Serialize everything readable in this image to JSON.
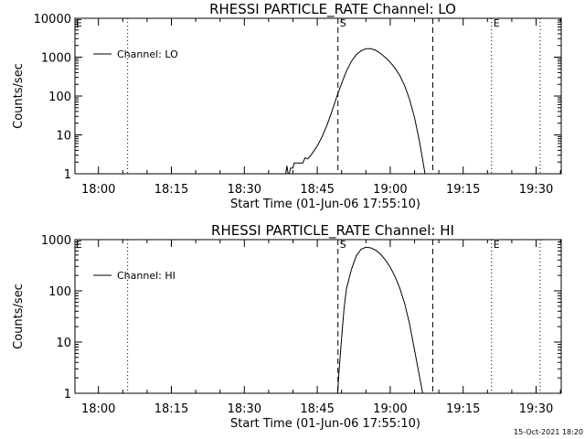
{
  "footer": {
    "timestamp": "15-Oct-2021 18:20"
  },
  "chart_data": [
    {
      "type": "line",
      "title": "RHESSI PARTICLE_RATE Channel: LO",
      "xlabel": "Start Time (01-Jun-06 17:55:10)",
      "ylabel": "Counts/sec",
      "yscale": "log",
      "ylim": [
        1,
        10000
      ],
      "xlim": [
        "17:55:10",
        "19:35:10"
      ],
      "x_ticks": [
        "18:00",
        "18:15",
        "18:30",
        "18:45",
        "19:00",
        "19:15",
        "19:30"
      ],
      "y_ticks": [
        "1",
        "10",
        "100",
        "1000",
        "10000"
      ],
      "legend": {
        "position": "top-left",
        "entries": [
          "Channel: LO"
        ]
      },
      "series": [
        {
          "name": "Channel: LO",
          "x": [
            "18:38:30",
            "18:38:45",
            "18:39:00",
            "18:39:15",
            "18:39:30",
            "18:40:00",
            "18:40:15",
            "18:41:00",
            "18:42:00",
            "18:42:30",
            "18:43:00",
            "18:43:30",
            "18:44:00",
            "18:45:00",
            "18:46:00",
            "18:47:00",
            "18:48:00",
            "18:49:00",
            "18:50:00",
            "18:51:00",
            "18:52:00",
            "18:53:00",
            "18:54:00",
            "18:55:00",
            "18:56:00",
            "18:57:00",
            "18:58:00",
            "18:59:00",
            "19:00:00",
            "19:01:00",
            "19:02:00",
            "19:03:00",
            "19:04:00",
            "19:05:00",
            "19:06:00",
            "19:06:40",
            "19:07:10"
          ],
          "y": [
            1.0,
            1.6,
            1.0,
            1.0,
            1.4,
            1.4,
            1.9,
            1.9,
            1.9,
            2.6,
            2.4,
            2.8,
            3.4,
            5.2,
            9.0,
            18,
            40,
            95,
            210,
            440,
            780,
            1150,
            1450,
            1650,
            1650,
            1500,
            1250,
            980,
            740,
            520,
            330,
            180,
            80,
            28,
            7,
            2.3,
            1.0
          ]
        }
      ],
      "annotations": [
        {
          "label": "S",
          "time": "18:49:15",
          "style": "dashed"
        },
        {
          "label": "",
          "time": "19:08:45",
          "style": "dashed"
        },
        {
          "label": "E",
          "time": "19:20:50",
          "style": "dotted"
        },
        {
          "label": "",
          "time": "18:06:00",
          "style": "dotted"
        },
        {
          "label": "",
          "time": "19:30:50",
          "style": "dotted"
        },
        {
          "label": "E",
          "time": "17:55:20",
          "style": "none"
        }
      ]
    },
    {
      "type": "line",
      "title": "RHESSI PARTICLE_RATE Channel: HI",
      "xlabel": "Start Time (01-Jun-06 17:55:10)",
      "ylabel": "Counts/sec",
      "yscale": "log",
      "ylim": [
        1,
        1000
      ],
      "xlim": [
        "17:55:10",
        "19:35:10"
      ],
      "x_ticks": [
        "18:00",
        "18:15",
        "18:30",
        "18:45",
        "19:00",
        "19:15",
        "19:30"
      ],
      "y_ticks": [
        "1",
        "10",
        "100",
        "1000"
      ],
      "legend": {
        "position": "top-left",
        "entries": [
          "Channel: HI"
        ]
      },
      "series": [
        {
          "name": "Channel: HI",
          "x": [
            "18:49:10",
            "18:49:30",
            "18:50:00",
            "18:50:30",
            "18:51:00",
            "18:52:00",
            "18:53:00",
            "18:54:00",
            "18:55:00",
            "18:56:00",
            "18:57:00",
            "18:58:00",
            "18:59:00",
            "19:00:00",
            "19:01:00",
            "19:02:00",
            "19:03:00",
            "19:04:00",
            "19:05:00",
            "19:06:00",
            "19:06:40"
          ],
          "y": [
            1.0,
            3,
            12,
            45,
            110,
            260,
            480,
            650,
            710,
            690,
            620,
            520,
            400,
            290,
            190,
            110,
            55,
            22,
            7,
            2.2,
            1.0
          ]
        }
      ],
      "annotations": [
        {
          "label": "S",
          "time": "18:49:15",
          "style": "dashed"
        },
        {
          "label": "",
          "time": "19:08:45",
          "style": "dashed"
        },
        {
          "label": "E",
          "time": "19:20:50",
          "style": "dotted"
        },
        {
          "label": "",
          "time": "18:06:00",
          "style": "dotted"
        },
        {
          "label": "",
          "time": "19:30:50",
          "style": "dotted"
        },
        {
          "label": "E",
          "time": "17:55:20",
          "style": "none"
        }
      ]
    }
  ]
}
